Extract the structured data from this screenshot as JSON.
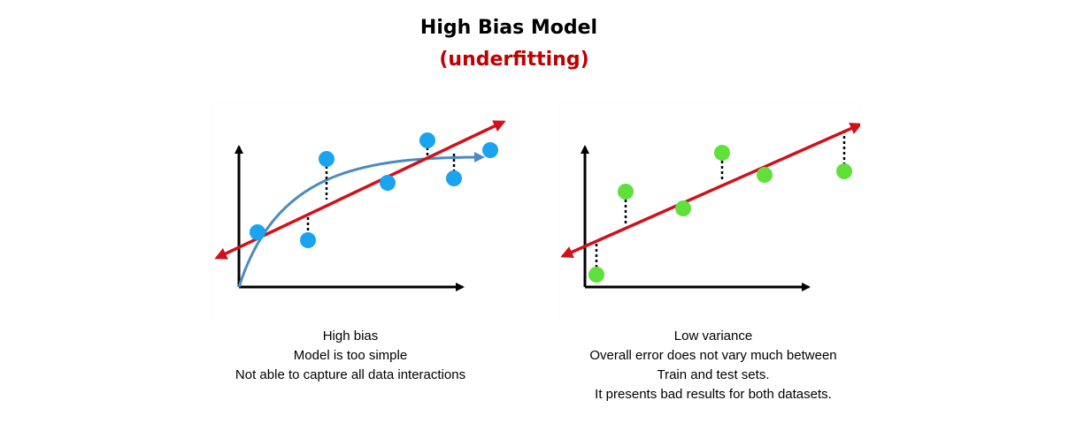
{
  "header": {
    "title": "High Bias Model",
    "subtitle": "(underfitting)"
  },
  "colors": {
    "title": "#000000",
    "subtitle": "#c00000",
    "fit_line": "#d0111b",
    "curve": "#4a8bc2",
    "left_points": "#1aa3ee",
    "right_points": "#5fe03b",
    "axis": "#000000"
  },
  "left_diagram": {
    "caption_lines": [
      "High bias",
      "Model is too simple",
      "Not able to capture all data interactions"
    ]
  },
  "right_diagram": {
    "caption_lines": [
      "Low variance",
      "Overall error does not vary much between",
      "Train and test sets.",
      "It presents bad results for both datasets."
    ]
  }
}
